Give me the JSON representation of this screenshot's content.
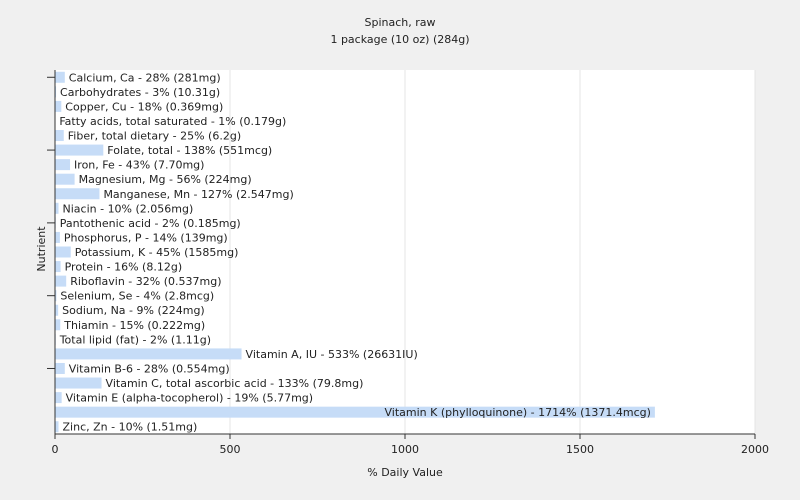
{
  "chart_data": {
    "type": "bar",
    "orientation": "horizontal",
    "title": "Spinach, raw",
    "subtitle": "1 package (10 oz) (284g)",
    "x_label": "% Daily Value",
    "y_label": "Nutrient",
    "values": [
      28,
      3,
      18,
      1,
      25,
      138,
      43,
      56,
      127,
      10,
      2,
      14,
      45,
      16,
      32,
      4,
      9,
      15,
      2,
      533,
      28,
      133,
      19,
      1714,
      10
    ],
    "value_labels": [
      "Calcium, Ca - 28% (281mg)",
      "Carbohydrates - 3% (10.31g)",
      "Copper, Cu - 18% (0.369mg)",
      "Fatty acids, total saturated - 1% (0.179g)",
      "Fiber, total dietary - 25% (6.2g)",
      "Folate, total - 138% (551mcg)",
      "Iron, Fe - 43% (7.70mg)",
      "Magnesium, Mg - 56% (224mg)",
      "Manganese, Mn - 127% (2.547mg)",
      "Niacin - 10% (2.056mg)",
      "Pantothenic acid - 2% (0.185mg)",
      "Phosphorus, P - 14% (139mg)",
      "Potassium, K - 45% (1585mg)",
      "Protein - 16% (8.12g)",
      "Riboflavin - 32% (0.537mg)",
      "Selenium, Se - 4% (2.8mcg)",
      "Sodium, Na - 9% (224mg)",
      "Thiamin - 15% (0.222mg)",
      "Total lipid (fat) - 2% (1.11g)",
      "Vitamin A, IU - 533% (26631IU)",
      "Vitamin B-6 - 28% (0.554mg)",
      "Vitamin C, total ascorbic acid - 133% (79.8mg)",
      "Vitamin E (alpha-tocopherol) - 19% (5.77mg)",
      "Vitamin K (phylloquinone) - 1714% (1371.4mcg)",
      "Zinc, Zn - 10% (1.51mg)"
    ],
    "color": "#c6dcf7",
    "xlim": [
      0,
      2000
    ],
    "xticks": [
      0,
      500,
      1000,
      1500,
      2000
    ],
    "grid": true
  }
}
